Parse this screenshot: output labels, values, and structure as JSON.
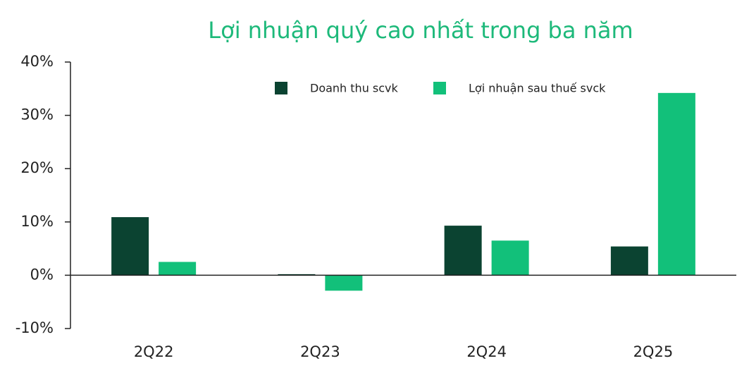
{
  "chart_data": {
    "type": "bar",
    "title": "Lợi nhuận quý cao nhất trong ba năm",
    "categories": [
      "2Q22",
      "2Q23",
      "2Q24",
      "2Q25"
    ],
    "series": [
      {
        "name": "Doanh thu scvk",
        "color": "#0b4331",
        "values": [
          10.9,
          0.2,
          9.3,
          5.4
        ]
      },
      {
        "name": "Lợi nhuận sau thuế svck",
        "color": "#12c07a",
        "values": [
          2.5,
          -2.9,
          6.5,
          34.2
        ]
      }
    ],
    "ylim": [
      -10,
      40
    ],
    "yticks": [
      {
        "value": -10,
        "label": "-10%"
      },
      {
        "value": 0,
        "label": "0%"
      },
      {
        "value": 10,
        "label": "10%"
      },
      {
        "value": 20,
        "label": "20%"
      },
      {
        "value": 30,
        "label": "30%"
      },
      {
        "value": 40,
        "label": "40%"
      }
    ],
    "legend": "top",
    "grid": false
  }
}
